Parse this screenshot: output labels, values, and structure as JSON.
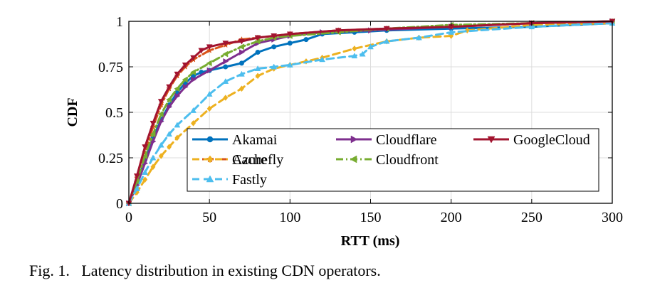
{
  "caption": {
    "label": "Fig. 1.",
    "text": "Latency distribution in existing CDN operators."
  },
  "chart_data": {
    "type": "line",
    "title": "",
    "xlabel": "RTT (ms)",
    "ylabel": "CDF",
    "xlim": [
      0,
      300
    ],
    "ylim": [
      0,
      1
    ],
    "xticks": [
      0,
      50,
      100,
      150,
      200,
      250,
      300
    ],
    "xtick_labels": [
      "0",
      "50",
      "100",
      "150",
      "200",
      "250",
      "300"
    ],
    "yticks": [
      0,
      0.25,
      0.5,
      0.75,
      1
    ],
    "ytick_labels": [
      "0",
      "0.25",
      "0.5",
      "0.75",
      "1"
    ],
    "grid": true,
    "legend_position": "lower-right",
    "series": [
      {
        "name": "Akamai",
        "color": "#0072BD",
        "dash": "solid",
        "marker": "circle",
        "x": [
          0,
          5,
          10,
          15,
          20,
          25,
          30,
          35,
          40,
          45,
          50,
          60,
          70,
          80,
          90,
          100,
          110,
          120,
          140,
          160,
          200,
          250,
          300
        ],
        "y": [
          0,
          0.12,
          0.24,
          0.36,
          0.46,
          0.54,
          0.61,
          0.66,
          0.7,
          0.72,
          0.73,
          0.75,
          0.77,
          0.83,
          0.86,
          0.88,
          0.9,
          0.93,
          0.94,
          0.95,
          0.96,
          0.97,
          0.99
        ]
      },
      {
        "name": "Azure",
        "color": "#D95319",
        "dash": "dashdot",
        "marker": "star",
        "x": [
          0,
          5,
          10,
          15,
          20,
          25,
          30,
          35,
          40,
          50,
          60,
          70,
          80,
          100,
          130,
          160,
          200,
          250,
          300
        ],
        "y": [
          0,
          0.14,
          0.28,
          0.42,
          0.54,
          0.63,
          0.7,
          0.75,
          0.79,
          0.84,
          0.87,
          0.9,
          0.91,
          0.93,
          0.95,
          0.96,
          0.97,
          0.99,
          1.0
        ]
      },
      {
        "name": "Cachefly",
        "color": "#EDB120",
        "dash": "dashed",
        "marker": "diamond",
        "x": [
          0,
          5,
          10,
          15,
          20,
          25,
          30,
          40,
          50,
          60,
          70,
          80,
          90,
          100,
          110,
          120,
          140,
          160,
          180,
          200,
          210,
          250,
          300
        ],
        "y": [
          0,
          0.06,
          0.13,
          0.2,
          0.26,
          0.31,
          0.36,
          0.44,
          0.52,
          0.58,
          0.63,
          0.7,
          0.74,
          0.76,
          0.78,
          0.8,
          0.85,
          0.89,
          0.91,
          0.92,
          0.95,
          0.98,
          0.99
        ]
      },
      {
        "name": "Cloudflare",
        "color": "#7E2F8E",
        "dash": "solid",
        "marker": "triangle-right",
        "x": [
          0,
          5,
          10,
          15,
          20,
          25,
          30,
          35,
          40,
          50,
          60,
          70,
          80,
          90,
          100,
          120,
          150,
          200,
          250,
          300
        ],
        "y": [
          0,
          0.1,
          0.22,
          0.34,
          0.45,
          0.53,
          0.59,
          0.64,
          0.68,
          0.73,
          0.78,
          0.83,
          0.88,
          0.9,
          0.92,
          0.94,
          0.95,
          0.97,
          0.99,
          1.0
        ]
      },
      {
        "name": "Cloudfront",
        "color": "#77AC30",
        "dash": "dashdot",
        "marker": "triangle-left",
        "x": [
          0,
          5,
          10,
          15,
          20,
          25,
          30,
          35,
          40,
          50,
          60,
          70,
          80,
          90,
          100,
          130,
          160,
          200,
          250,
          300
        ],
        "y": [
          0,
          0.12,
          0.26,
          0.38,
          0.49,
          0.57,
          0.63,
          0.68,
          0.72,
          0.77,
          0.82,
          0.86,
          0.89,
          0.91,
          0.92,
          0.94,
          0.96,
          0.98,
          0.99,
          1.0
        ]
      },
      {
        "name": "Fastly",
        "color": "#4DBEEE",
        "dash": "dashed",
        "marker": "triangle-up",
        "x": [
          0,
          5,
          10,
          15,
          20,
          25,
          30,
          40,
          50,
          60,
          70,
          80,
          90,
          100,
          120,
          140,
          145,
          150,
          160,
          180,
          200,
          250,
          300
        ],
        "y": [
          0,
          0.08,
          0.17,
          0.25,
          0.32,
          0.38,
          0.43,
          0.51,
          0.6,
          0.67,
          0.71,
          0.74,
          0.75,
          0.76,
          0.79,
          0.81,
          0.82,
          0.86,
          0.89,
          0.91,
          0.94,
          0.97,
          0.99
        ]
      },
      {
        "name": "GoogleCloud",
        "color": "#A2142F",
        "dash": "solid",
        "marker": "triangle-down",
        "x": [
          0,
          5,
          10,
          15,
          20,
          25,
          30,
          35,
          40,
          45,
          50,
          60,
          70,
          80,
          90,
          100,
          130,
          160,
          200,
          250,
          300
        ],
        "y": [
          0,
          0.15,
          0.31,
          0.44,
          0.56,
          0.64,
          0.71,
          0.76,
          0.8,
          0.84,
          0.86,
          0.88,
          0.89,
          0.91,
          0.92,
          0.93,
          0.95,
          0.96,
          0.97,
          0.99,
          1.0
        ]
      }
    ],
    "legend_order": [
      "Akamai",
      "Cloudflare",
      "GoogleCloud",
      "Azure",
      "Cloudfront",
      "Cachefly",
      "Fastly"
    ]
  }
}
